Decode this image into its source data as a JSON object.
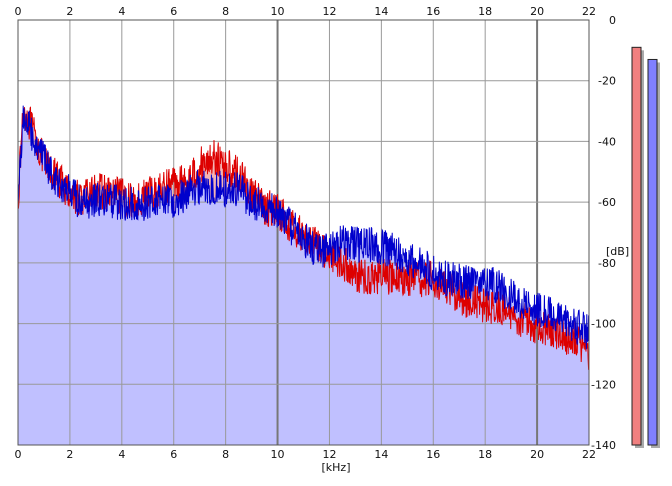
{
  "chart_data": {
    "type": "area",
    "x_unit_label": "[kHz]",
    "y_unit_label": "[dB]",
    "xlim": [
      0,
      22
    ],
    "ylim": [
      -140,
      0
    ],
    "x_ticks": [
      "0",
      "2",
      "4",
      "6",
      "8",
      "10",
      "12",
      "14",
      "16",
      "18",
      "20",
      "22"
    ],
    "y_ticks": [
      "0",
      "-20",
      "-40",
      "-60",
      "-80",
      "-100",
      "-120",
      "-140"
    ],
    "grid": true,
    "series": [
      {
        "color": "#dd0000",
        "fill": "#f4b4b4",
        "x": [
          0.0,
          0.2,
          0.5,
          1,
          1.5,
          2,
          2.5,
          3,
          3.5,
          4,
          4.5,
          5,
          5.5,
          6,
          6.5,
          7,
          7.5,
          8,
          8.5,
          9,
          9.5,
          10,
          10.5,
          11,
          11.5,
          12,
          12.5,
          13,
          13.5,
          14,
          14.5,
          15,
          15.5,
          16,
          16.5,
          17,
          17.5,
          18,
          18.5,
          19,
          19.5,
          20,
          20.5,
          21,
          21.5,
          22
        ],
        "y": [
          -60,
          -29,
          -35,
          -47,
          -52,
          -57,
          -59,
          -56,
          -57,
          -58,
          -60,
          -57,
          -56,
          -53,
          -54,
          -48,
          -45,
          -48,
          -51,
          -57,
          -62,
          -62,
          -68,
          -71,
          -74,
          -77,
          -80,
          -84,
          -85,
          -84,
          -85,
          -85,
          -86,
          -85,
          -88,
          -91,
          -93,
          -94,
          -95,
          -97,
          -99,
          -101,
          -102,
          -104,
          -105,
          -110
        ]
      },
      {
        "color": "#0000cc",
        "fill": "#c0c0ff",
        "x": [
          0.0,
          0.2,
          0.5,
          1,
          1.5,
          2,
          2.5,
          3,
          3.5,
          4,
          4.5,
          5,
          5.5,
          6,
          6.5,
          7,
          7.5,
          8,
          8.5,
          9,
          9.5,
          10,
          10.5,
          11,
          11.5,
          12,
          12.5,
          13,
          13.5,
          14,
          14.5,
          15,
          15.5,
          16,
          16.5,
          17,
          17.5,
          18,
          18.5,
          19,
          19.5,
          20,
          20.5,
          21,
          21.5,
          22
        ],
        "y": [
          -60,
          -31,
          -37,
          -46,
          -53,
          -57,
          -61,
          -59,
          -60,
          -60,
          -61,
          -60,
          -58,
          -60,
          -57,
          -55,
          -55,
          -56,
          -56,
          -60,
          -62,
          -63,
          -68,
          -72,
          -76,
          -75,
          -73,
          -74,
          -74,
          -75,
          -76,
          -79,
          -81,
          -83,
          -85,
          -86,
          -86,
          -86,
          -88,
          -91,
          -93,
          -95,
          -97,
          -99,
          -101,
          -103
        ]
      }
    ]
  },
  "level_meters": {
    "left": {
      "color": "#f08080",
      "level_db": -9
    },
    "right": {
      "color": "#8080ff",
      "level_db": -13
    }
  }
}
